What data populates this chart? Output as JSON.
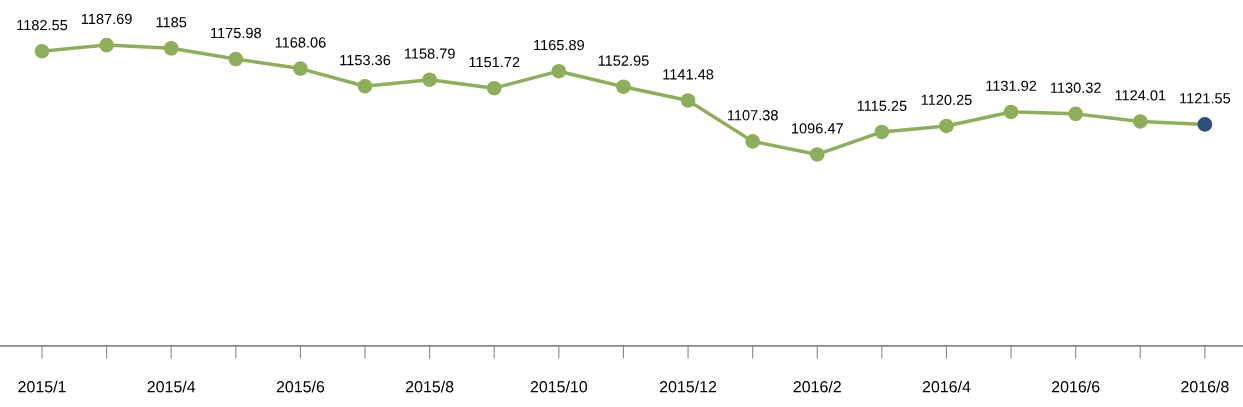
{
  "chart_data": {
    "type": "line",
    "categories": [
      "2015/1",
      null,
      "2015/4",
      null,
      "2015/6",
      null,
      "2015/8",
      null,
      "2015/10",
      null,
      "2015/12",
      null,
      "2016/2",
      null,
      "2016/4",
      null,
      "2016/6",
      null,
      "2016/8"
    ],
    "series": [
      {
        "color": "#8fae5c",
        "colors": [
          "#8fae5c",
          "#8fae5c",
          "#8fae5c",
          "#8fae5c",
          "#8fae5c",
          "#8fae5c",
          "#8fae5c",
          "#8fae5c",
          "#8fae5c",
          "#8fae5c",
          "#8fae5c",
          "#8fae5c",
          "#8fae5c",
          "#8fae5c",
          "#8fae5c",
          "#8fae5c",
          "#8fae5c",
          "#8fae5c",
          "#2e4e7e"
        ],
        "values": [
          1182.55,
          1187.69,
          1185,
          1175.98,
          1168.06,
          1153.36,
          1158.79,
          1151.72,
          1165.89,
          1152.95,
          1141.48,
          1107.38,
          1096.47,
          1115.25,
          1120.25,
          1131.92,
          1130.32,
          1124.01,
          1121.55
        ]
      }
    ],
    "data_labels": true,
    "marker": "circle",
    "line_style": "solid",
    "grid": false,
    "legend": false,
    "tick_labels": "x"
  }
}
